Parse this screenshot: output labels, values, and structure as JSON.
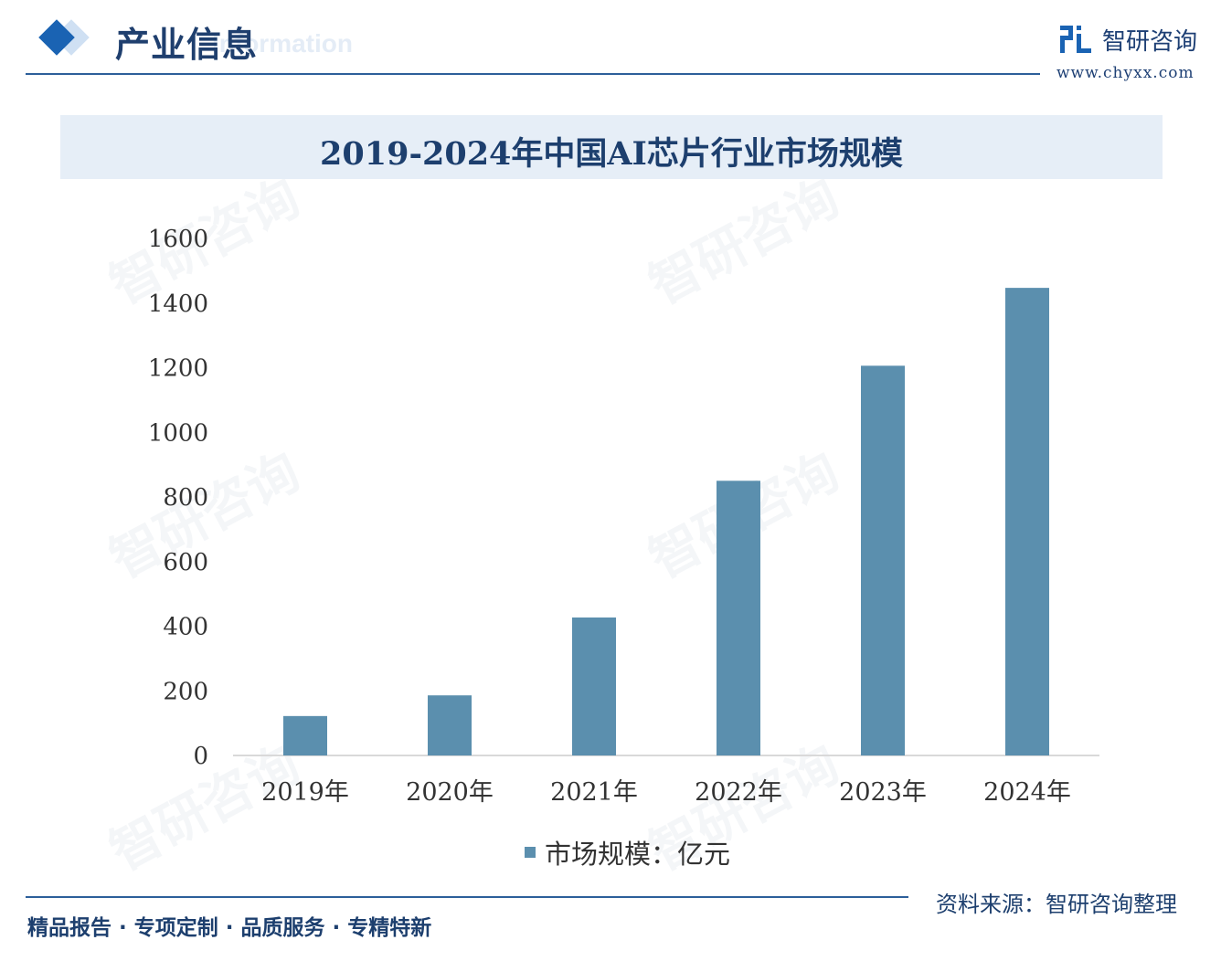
{
  "header": {
    "section_title": "产业信息",
    "section_title_en": "Information",
    "brand_name": "智研咨询",
    "brand_url": "www.chyxx.com"
  },
  "footer": {
    "slogan": "精品报告 · 专项定制 · 品质服务 · 专精特新",
    "source": "资料来源：智研咨询整理"
  },
  "watermark_text": "智研咨询",
  "colors": {
    "bar": "#5b8fae",
    "title": "#1d3f6e",
    "accent": "#1a63b3",
    "band": "#e6eef7"
  },
  "chart_data": {
    "type": "bar",
    "title": "2019-2024年中国AI芯片行业市场规模",
    "categories": [
      "2019年",
      "2020年",
      "2021年",
      "2022年",
      "2023年",
      "2024年"
    ],
    "series": [
      {
        "name": "市场规模：亿元",
        "values": [
          122,
          186,
          427,
          850,
          1206,
          1447
        ]
      }
    ],
    "yticks": [
      "0",
      "200",
      "400",
      "600",
      "800",
      "1000",
      "1200",
      "1400",
      "1600"
    ],
    "ylim": [
      0,
      1600
    ],
    "grid": false,
    "legend": "bottom"
  }
}
